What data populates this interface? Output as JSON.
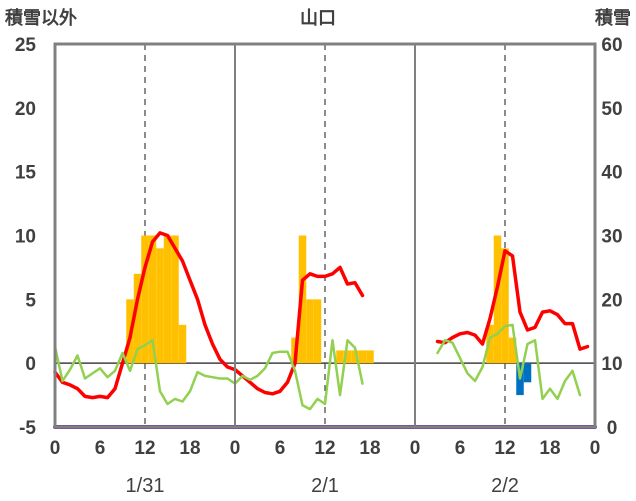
{
  "chart_data": {
    "type": "bar+line",
    "title": "山口",
    "ylabel_left": "積雪以外",
    "ylabel_right": "積雪",
    "ylim_left": [
      -5,
      25
    ],
    "ylim_right": [
      0,
      60
    ],
    "yticks_left": [
      25,
      20,
      15,
      10,
      5,
      0,
      -5
    ],
    "yticks_right": [
      60,
      50,
      40,
      30,
      20,
      10,
      0
    ],
    "x_hours_total": 72,
    "xticks": [
      {
        "h": 0,
        "label": "0"
      },
      {
        "h": 6,
        "label": "6"
      },
      {
        "h": 12,
        "label": "12"
      },
      {
        "h": 18,
        "label": "18"
      },
      {
        "h": 24,
        "label": "0"
      },
      {
        "h": 30,
        "label": "6"
      },
      {
        "h": 36,
        "label": "12"
      },
      {
        "h": 42,
        "label": "18"
      },
      {
        "h": 48,
        "label": "0"
      },
      {
        "h": 54,
        "label": "6"
      },
      {
        "h": 60,
        "label": "12"
      },
      {
        "h": 66,
        "label": "18"
      },
      {
        "h": 72,
        "label": "0"
      }
    ],
    "dates": [
      {
        "h": 12,
        "label": "1/31"
      },
      {
        "h": 36,
        "label": "2/1"
      },
      {
        "h": 60,
        "label": "2/2"
      }
    ],
    "grid": {
      "day_separators_hours": [
        24,
        48
      ],
      "dashed_noon_hours": [
        12,
        36,
        60
      ],
      "zero_line": true
    },
    "colors": {
      "frame": "#808080",
      "snowfall_bar": "#ffc000",
      "rain_bar": "#0070c0",
      "snow_depth_line": "#ff0000",
      "green_line": "#92d050",
      "purple_line": "#7030a0"
    },
    "series": [
      {
        "type": "bar",
        "color": "#ffc000",
        "x": [
          10,
          11,
          12,
          13,
          14,
          15,
          16,
          17,
          32,
          33,
          34,
          35,
          36,
          37,
          38,
          39,
          40,
          41,
          42,
          58,
          59,
          60,
          61
        ],
        "values": [
          5,
          7,
          10,
          10,
          9,
          10,
          10,
          3,
          2,
          10,
          5,
          5,
          0,
          0,
          1,
          1,
          1,
          1,
          1,
          3,
          10,
          9,
          2
        ]
      },
      {
        "type": "bar",
        "color": "#0070c0",
        "x": [
          62,
          63
        ],
        "values": [
          -2.5,
          -1.5
        ]
      },
      {
        "type": "line",
        "color": "#ff0000",
        "x": [
          0,
          1,
          2,
          3,
          4,
          5,
          6,
          7,
          8,
          9,
          10,
          11,
          12,
          13,
          14,
          15,
          16,
          17,
          18,
          19,
          20,
          21,
          22,
          23,
          24,
          25,
          26,
          27,
          28,
          29,
          30,
          31,
          32,
          33,
          34,
          35,
          36,
          37,
          38,
          39,
          40,
          41,
          42
        ],
        "values": [
          -0.7,
          -1.5,
          -1.7,
          -2,
          -2.6,
          -2.7,
          -2.6,
          -2.7,
          -2,
          0,
          2,
          5,
          7.5,
          9.5,
          10.2,
          10,
          9,
          8,
          6.5,
          5,
          3,
          1.5,
          0.3,
          -0.3,
          -0.5,
          -1,
          -1.5,
          -2,
          -2.3,
          -2.4,
          -2.2,
          -1.5,
          0,
          6.5,
          7,
          6.8,
          6.8,
          7,
          7.5,
          6.2,
          6.3,
          5.3,
          null
        ]
      },
      {
        "type": "line",
        "color": "#ff0000",
        "x": [
          51,
          52,
          53,
          54,
          55,
          56,
          57,
          58,
          59,
          60,
          61,
          62,
          63,
          64,
          65,
          66,
          67,
          68,
          69,
          70,
          71
        ],
        "values": [
          1.7,
          1.6,
          2.0,
          2.3,
          2.4,
          2.2,
          1.5,
          3.5,
          6,
          8.8,
          8.4,
          4,
          2.6,
          2.8,
          4,
          4.1,
          3.8,
          3.1,
          3.1,
          1.1,
          1.3
        ]
      },
      {
        "type": "line",
        "color": "#92d050",
        "x": [
          0,
          1,
          2,
          3,
          4,
          5,
          6,
          7,
          8,
          9,
          10,
          11,
          12,
          13,
          14,
          15,
          16,
          17,
          18,
          19,
          20,
          21,
          22,
          23,
          24,
          25,
          26,
          27,
          28,
          29,
          30,
          31,
          32,
          33,
          34,
          35,
          36,
          37,
          38,
          39,
          40,
          41,
          42
        ],
        "values": [
          1.3,
          -1.4,
          -0.5,
          0.6,
          -1.2,
          -0.8,
          -0.4,
          -1.1,
          -0.6,
          0.8,
          -0.6,
          1.1,
          1.4,
          1.8,
          -2.2,
          -3.2,
          -2.8,
          -3.0,
          -2.2,
          -0.7,
          -1.0,
          -1.1,
          -1.2,
          -1.2,
          -1.6,
          -1.0,
          -1.3,
          -1.0,
          -0.4,
          0.8,
          0.9,
          0.9,
          -0.6,
          -3.3,
          -3.6,
          -2.8,
          -3.2,
          1.8,
          -2.5,
          1.8,
          1.2,
          -1.6,
          null
        ]
      },
      {
        "type": "line",
        "color": "#92d050",
        "x": [
          51,
          52,
          53,
          54,
          55,
          56,
          57,
          58,
          59,
          60,
          61,
          62,
          63,
          64,
          65,
          66,
          67,
          68,
          69,
          70,
          71
        ],
        "values": [
          0.8,
          1.8,
          1.6,
          0.4,
          -0.8,
          -1.4,
          -0.3,
          2.0,
          2.3,
          2.9,
          3.0,
          -1.2,
          1.5,
          1.8,
          -2.8,
          -2.0,
          -2.8,
          -1.4,
          -0.6,
          -2.5,
          null
        ]
      },
      {
        "type": "line",
        "color": "#7030a0",
        "x": [
          0,
          72
        ],
        "values": [
          -5,
          -5
        ]
      }
    ]
  }
}
